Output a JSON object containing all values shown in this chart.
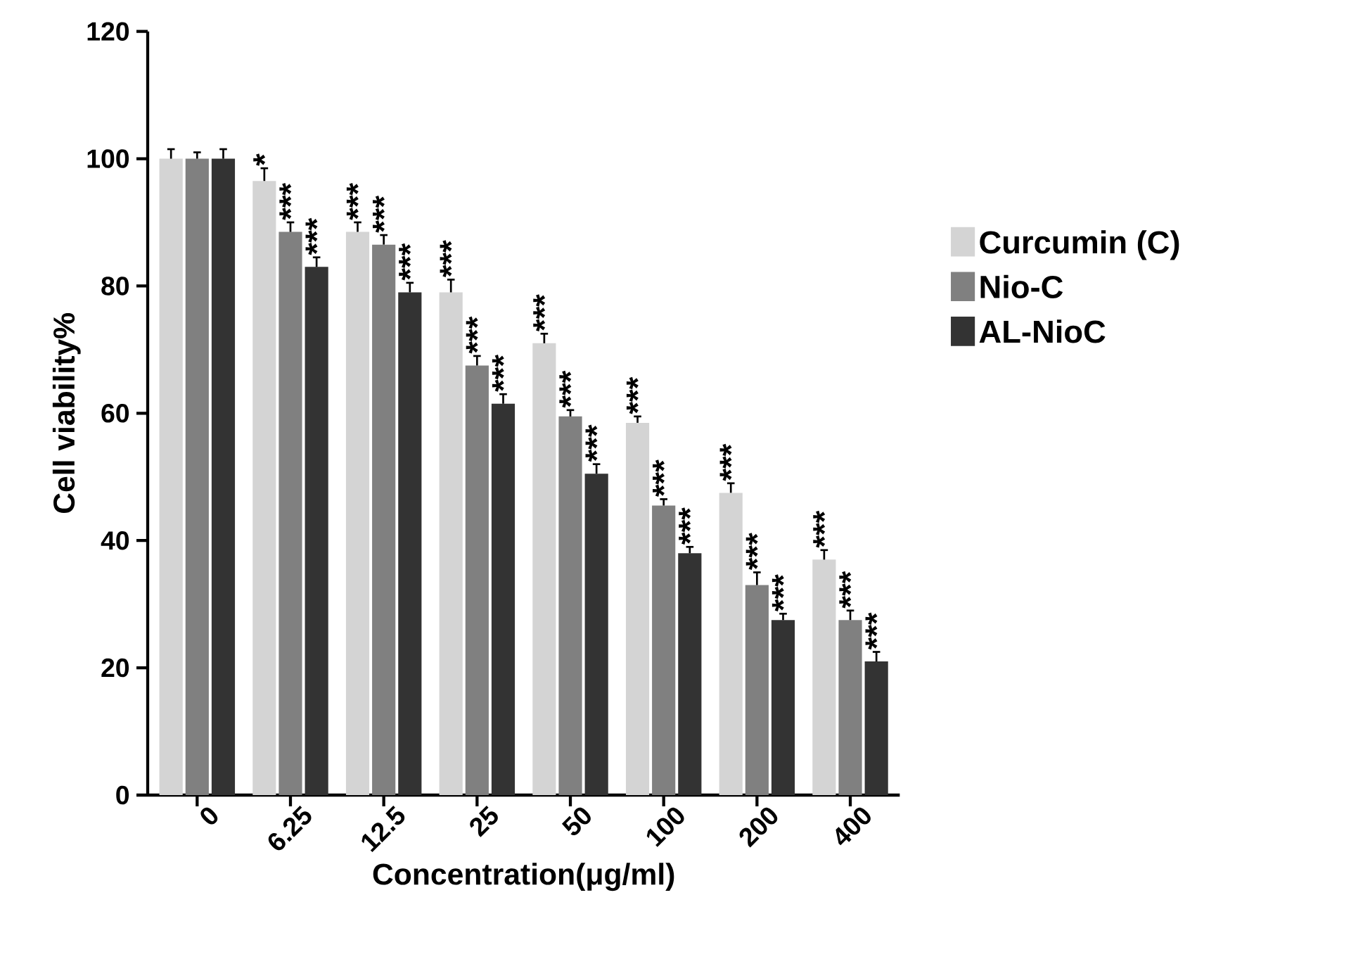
{
  "chart_data": {
    "type": "bar",
    "xlabel": "Concentration(μg/ml)",
    "ylabel": "Cell viability%",
    "categories": [
      "0",
      "6.25",
      "12.5",
      "25",
      "50",
      "100",
      "200",
      "400"
    ],
    "ylim": [
      0,
      120
    ],
    "yticks": [
      0,
      20,
      40,
      60,
      80,
      100,
      120
    ],
    "legend": "right",
    "grid": false,
    "series": [
      {
        "name": "Curcumin (C)",
        "color": "#d4d4d4",
        "values": [
          100,
          96.5,
          88.5,
          79,
          71,
          58.5,
          47.5,
          37
        ],
        "errors": [
          1.5,
          2,
          1.5,
          2,
          1.5,
          1,
          1.5,
          1.5
        ],
        "value_labels": [
          null,
          "*",
          "***",
          "***",
          "***",
          "***",
          "***",
          "***"
        ]
      },
      {
        "name": "Nio-C",
        "color": "#808080",
        "values": [
          100,
          88.5,
          86.5,
          67.5,
          59.5,
          45.5,
          33,
          27.5
        ],
        "errors": [
          1,
          1.5,
          1.5,
          1.5,
          1,
          1,
          2,
          1.5
        ],
        "value_labels": [
          null,
          "***",
          "***",
          "***",
          "***",
          "***",
          "***",
          "***"
        ]
      },
      {
        "name": "AL-NioC",
        "color": "#333333",
        "values": [
          100,
          83,
          79,
          61.5,
          50.5,
          38,
          27.5,
          21
        ],
        "errors": [
          1.5,
          1.5,
          1.5,
          1.5,
          1.5,
          1,
          1,
          1.5
        ],
        "value_labels": [
          null,
          "***",
          "***",
          "***",
          "***",
          "***",
          "***",
          "***"
        ]
      }
    ]
  }
}
